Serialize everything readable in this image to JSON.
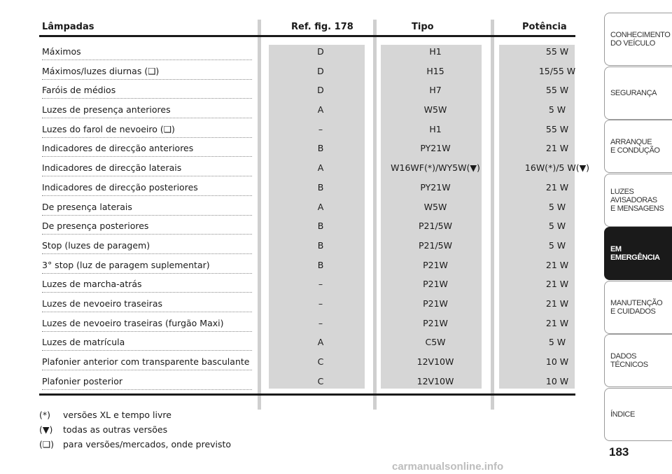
{
  "table": {
    "headers": {
      "lamp": "Lâmpadas",
      "ref": "Ref. fig. 178",
      "tipo": "Tipo",
      "pot": "Potência"
    },
    "rows": [
      {
        "lamp": "Máximos",
        "ref": "D",
        "tipo": "H1",
        "pot": "55 W"
      },
      {
        "lamp": "Máximos/luzes diurnas (❑)",
        "ref": "D",
        "tipo": "H15",
        "pot": "15/55 W"
      },
      {
        "lamp": "Faróis de médios",
        "ref": "D",
        "tipo": "H7",
        "pot": "55 W"
      },
      {
        "lamp": "Luzes de presença anteriores",
        "ref": "A",
        "tipo": "W5W",
        "pot": "5 W"
      },
      {
        "lamp": "Luzes do farol de nevoeiro (❑)",
        "ref": "–",
        "tipo": "H1",
        "pot": "55 W"
      },
      {
        "lamp": "Indicadores de direcção anteriores",
        "ref": "B",
        "tipo": "PY21W",
        "pot": "21 W"
      },
      {
        "lamp": "Indicadores de direcção laterais",
        "ref": "A",
        "tipo": "W16WF(*)/WY5W(▼)",
        "pot": "16W(*)/5 W(▼)"
      },
      {
        "lamp": "Indicadores de direcção posteriores",
        "ref": "B",
        "tipo": "PY21W",
        "pot": "21 W"
      },
      {
        "lamp": "De presença laterais",
        "ref": "A",
        "tipo": "W5W",
        "pot": "5 W"
      },
      {
        "lamp": "De presença posteriores",
        "ref": "B",
        "tipo": "P21/5W",
        "pot": "5 W"
      },
      {
        "lamp": "Stop (luzes de paragem)",
        "ref": "B",
        "tipo": "P21/5W",
        "pot": "5 W"
      },
      {
        "lamp": "3° stop (luz de paragem suplementar)",
        "ref": "B",
        "tipo": "P21W",
        "pot": "21 W"
      },
      {
        "lamp": "Luzes de marcha-atrás",
        "ref": "–",
        "tipo": "P21W",
        "pot": "21 W"
      },
      {
        "lamp": "Luzes de nevoeiro traseiras",
        "ref": "–",
        "tipo": "P21W",
        "pot": "21 W"
      },
      {
        "lamp": "Luzes de nevoeiro traseiras (furgão Maxi)",
        "ref": "–",
        "tipo": "P21W",
        "pot": "21 W"
      },
      {
        "lamp": "Luzes de matrícula",
        "ref": "A",
        "tipo": "C5W",
        "pot": "5 W"
      },
      {
        "lamp": "Plafonier anterior com transparente basculante",
        "ref": "C",
        "tipo": "12V10W",
        "pot": "10 W"
      },
      {
        "lamp": "Plafonier posterior",
        "ref": "C",
        "tipo": "12V10W",
        "pot": "10 W"
      }
    ]
  },
  "footnotes": [
    {
      "symbol": "(*)",
      "text": "versões XL e tempo livre"
    },
    {
      "symbol": "(▼)",
      "text": "todas as outras versões"
    },
    {
      "symbol": "(❑)",
      "text": "para versões/mercados, onde previsto"
    }
  ],
  "tabs": [
    {
      "label": "CONHECIMENTO\nDO VEÍCULO",
      "active": false
    },
    {
      "label": "SEGURANÇA",
      "active": false
    },
    {
      "label": "ARRANQUE\nE CONDUÇÃO",
      "active": false
    },
    {
      "label": "LUZES\nAVISADORAS\nE MENSAGENS",
      "active": false
    },
    {
      "label": "EM EMERGÊNCIA",
      "active": true
    },
    {
      "label": "MANUTENÇÃO\nE CUIDADOS",
      "active": false
    },
    {
      "label": "DADOS\nTÉCNICOS",
      "active": false
    },
    {
      "label": "ÍNDICE",
      "active": false
    }
  ],
  "page_number": "183",
  "watermark": "carmanualsonline.info"
}
